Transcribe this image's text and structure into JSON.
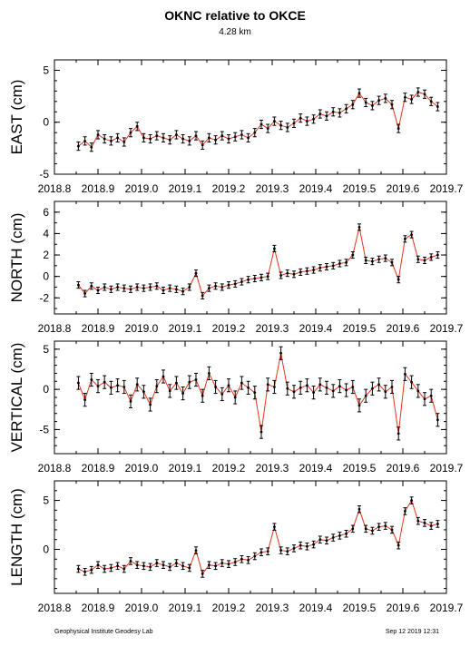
{
  "title": "OKNC relative to OKCE",
  "subtitle": "4.28 km",
  "footer_left": "Geophysical Institute Geodesy Lab",
  "footer_right": "Sep 12 2019 12:31",
  "colors": {
    "line": "#e8321e",
    "point": "#000000",
    "axis": "#000000"
  },
  "chart_data": [
    {
      "type": "line",
      "ylabel": "EAST (cm)",
      "xlim": [
        2018.8,
        2019.7
      ],
      "ylim": [
        -5,
        6
      ],
      "x_ticks": [
        "2018.8",
        "2018.9",
        "2019.0",
        "2019.1",
        "2019.2",
        "2019.3",
        "2019.4",
        "2019.5",
        "2019.6",
        "2019.7"
      ],
      "y_ticks": [
        "-5",
        "0",
        "5"
      ],
      "error_bar_cm": 0.4,
      "series": [
        {
          "x": [
            2018.855,
            2018.87,
            2018.885,
            2018.9,
            2018.915,
            2018.93,
            2018.945,
            2018.96,
            2018.975,
            2018.99,
            2019.005,
            2019.02,
            2019.035,
            2019.05,
            2019.065,
            2019.08,
            2019.095,
            2019.11,
            2019.125,
            2019.14,
            2019.155,
            2019.17,
            2019.185,
            2019.2,
            2019.215,
            2019.23,
            2019.245,
            2019.26,
            2019.275,
            2019.29,
            2019.305,
            2019.32,
            2019.335,
            2019.35,
            2019.365,
            2019.38,
            2019.395,
            2019.41,
            2019.425,
            2019.44,
            2019.455,
            2019.47,
            2019.485,
            2019.5,
            2019.515,
            2019.53,
            2019.545,
            2019.56,
            2019.575,
            2019.59,
            2019.605,
            2019.62,
            2019.635,
            2019.65,
            2019.665,
            2019.68
          ],
          "y": [
            -2.3,
            -1.8,
            -2.4,
            -1.2,
            -1.6,
            -1.8,
            -1.5,
            -1.9,
            -1.0,
            -0.4,
            -1.5,
            -1.6,
            -1.3,
            -1.5,
            -1.7,
            -1.2,
            -1.6,
            -1.8,
            -1.3,
            -2.2,
            -1.5,
            -1.7,
            -1.3,
            -1.6,
            -1.4,
            -1.2,
            -1.5,
            -1.0,
            -0.2,
            -0.6,
            0.1,
            -0.3,
            -0.5,
            -0.1,
            0.4,
            0.1,
            0.3,
            0.8,
            0.6,
            1.0,
            0.9,
            1.3,
            1.7,
            2.8,
            1.9,
            1.6,
            2.1,
            2.3,
            1.7,
            -0.6,
            2.4,
            2.2,
            2.9,
            2.7,
            2.0,
            1.5
          ]
        }
      ]
    },
    {
      "type": "line",
      "ylabel": "NORTH (cm)",
      "xlim": [
        2018.8,
        2019.7
      ],
      "ylim": [
        -3.5,
        7
      ],
      "x_ticks": [
        "2018.8",
        "2018.9",
        "2019.0",
        "2019.1",
        "2019.2",
        "2019.3",
        "2019.4",
        "2019.5",
        "2019.6",
        "2019.7"
      ],
      "y_ticks": [
        "-2",
        "0",
        "2",
        "4",
        "6"
      ],
      "error_bar_cm": 0.3,
      "series": [
        {
          "x": [
            2018.855,
            2018.87,
            2018.885,
            2018.9,
            2018.915,
            2018.93,
            2018.945,
            2018.96,
            2018.975,
            2018.99,
            2019.005,
            2019.02,
            2019.035,
            2019.05,
            2019.065,
            2019.08,
            2019.095,
            2019.11,
            2019.125,
            2019.14,
            2019.155,
            2019.17,
            2019.185,
            2019.2,
            2019.215,
            2019.23,
            2019.245,
            2019.26,
            2019.275,
            2019.29,
            2019.305,
            2019.32,
            2019.335,
            2019.35,
            2019.365,
            2019.38,
            2019.395,
            2019.41,
            2019.425,
            2019.44,
            2019.455,
            2019.47,
            2019.485,
            2019.5,
            2019.515,
            2019.53,
            2019.545,
            2019.56,
            2019.575,
            2019.59,
            2019.605,
            2019.62,
            2019.635,
            2019.65,
            2019.665,
            2019.68
          ],
          "y": [
            -0.8,
            -1.6,
            -0.9,
            -1.3,
            -1.0,
            -1.2,
            -1.0,
            -1.1,
            -1.2,
            -1.0,
            -1.1,
            -1.0,
            -0.9,
            -1.3,
            -1.1,
            -1.2,
            -1.4,
            -1.0,
            0.3,
            -1.8,
            -1.1,
            -0.9,
            -1.0,
            -0.8,
            -0.7,
            -0.5,
            -0.3,
            -0.2,
            -0.1,
            0.0,
            2.6,
            0.1,
            0.3,
            0.2,
            0.4,
            0.5,
            0.6,
            0.8,
            0.9,
            1.0,
            1.2,
            1.3,
            2.0,
            4.6,
            1.5,
            1.4,
            1.6,
            1.7,
            1.3,
            -0.3,
            3.5,
            3.9,
            1.6,
            1.5,
            1.8,
            2.0
          ]
        }
      ]
    },
    {
      "type": "line",
      "ylabel": "VERTICAL (cm)",
      "xlim": [
        2018.8,
        2019.7
      ],
      "ylim": [
        -8,
        6
      ],
      "x_ticks": [
        "2018.8",
        "2018.9",
        "2019.0",
        "2019.1",
        "2019.2",
        "2019.3",
        "2019.4",
        "2019.5",
        "2019.6",
        "2019.7"
      ],
      "y_ticks": [
        "-5",
        "0",
        "5"
      ],
      "error_bar_cm": 0.8,
      "series": [
        {
          "x": [
            2018.855,
            2018.87,
            2018.885,
            2018.9,
            2018.915,
            2018.93,
            2018.945,
            2018.96,
            2018.975,
            2018.99,
            2019.005,
            2019.02,
            2019.035,
            2019.05,
            2019.065,
            2019.08,
            2019.095,
            2019.11,
            2019.125,
            2019.14,
            2019.155,
            2019.17,
            2019.185,
            2019.2,
            2019.215,
            2019.23,
            2019.245,
            2019.26,
            2019.275,
            2019.29,
            2019.305,
            2019.32,
            2019.335,
            2019.35,
            2019.365,
            2019.38,
            2019.395,
            2019.41,
            2019.425,
            2019.44,
            2019.455,
            2019.47,
            2019.485,
            2019.5,
            2019.515,
            2019.53,
            2019.545,
            2019.56,
            2019.575,
            2019.59,
            2019.605,
            2019.62,
            2019.635,
            2019.65,
            2019.665,
            2019.68
          ],
          "y": [
            0.8,
            -1.3,
            1.2,
            0.4,
            0.9,
            0.2,
            0.5,
            0.3,
            -1.5,
            0.6,
            -0.3,
            -1.9,
            0.4,
            1.6,
            -0.2,
            0.8,
            -0.5,
            0.9,
            1.2,
            -0.8,
            2.0,
            0.3,
            -0.6,
            0.5,
            -1.0,
            0.8,
            0.2,
            -0.4,
            -5.3,
            0.6,
            0.3,
            4.5,
            0.1,
            -0.3,
            0.2,
            0.5,
            -0.4,
            0.6,
            0.2,
            -0.2,
            0.4,
            -0.1,
            0.3,
            -2.0,
            -0.8,
            0.1,
            0.6,
            -0.3,
            0.3,
            -5.5,
            1.9,
            0.9,
            -0.2,
            -1.2,
            -0.8,
            -3.8
          ]
        }
      ]
    },
    {
      "type": "line",
      "ylabel": "LENGTH (cm)",
      "xlim": [
        2018.8,
        2019.7
      ],
      "ylim": [
        -4.5,
        7
      ],
      "x_ticks": [
        "2018.8",
        "2018.9",
        "2019.0",
        "2019.1",
        "2019.2",
        "2019.3",
        "2019.4",
        "2019.5",
        "2019.6",
        "2019.7"
      ],
      "y_ticks": [
        "0",
        "5"
      ],
      "error_bar_cm": 0.35,
      "series": [
        {
          "x": [
            2018.855,
            2018.87,
            2018.885,
            2018.9,
            2018.915,
            2018.93,
            2018.945,
            2018.96,
            2018.975,
            2018.99,
            2019.005,
            2019.02,
            2019.035,
            2019.05,
            2019.065,
            2019.08,
            2019.095,
            2019.11,
            2019.125,
            2019.14,
            2019.155,
            2019.17,
            2019.185,
            2019.2,
            2019.215,
            2019.23,
            2019.245,
            2019.26,
            2019.275,
            2019.29,
            2019.305,
            2019.32,
            2019.335,
            2019.35,
            2019.365,
            2019.38,
            2019.395,
            2019.41,
            2019.425,
            2019.44,
            2019.455,
            2019.47,
            2019.485,
            2019.5,
            2019.515,
            2019.53,
            2019.545,
            2019.56,
            2019.575,
            2019.59,
            2019.605,
            2019.62,
            2019.635,
            2019.65,
            2019.665,
            2019.68
          ],
          "y": [
            -2.0,
            -2.3,
            -2.1,
            -1.6,
            -2.0,
            -1.9,
            -1.7,
            -2.0,
            -1.2,
            -1.6,
            -1.7,
            -1.8,
            -1.4,
            -1.6,
            -1.8,
            -1.4,
            -1.7,
            -1.9,
            -0.1,
            -2.5,
            -1.6,
            -1.7,
            -1.4,
            -1.5,
            -1.3,
            -1.0,
            -1.1,
            -0.7,
            -0.3,
            -0.2,
            2.3,
            -0.1,
            -0.2,
            0.1,
            0.4,
            0.3,
            0.5,
            1.0,
            0.9,
            1.2,
            1.4,
            1.6,
            2.1,
            4.1,
            2.1,
            1.9,
            2.3,
            2.4,
            2.0,
            0.4,
            3.9,
            5.0,
            2.9,
            2.7,
            2.4,
            2.6
          ]
        }
      ]
    }
  ]
}
